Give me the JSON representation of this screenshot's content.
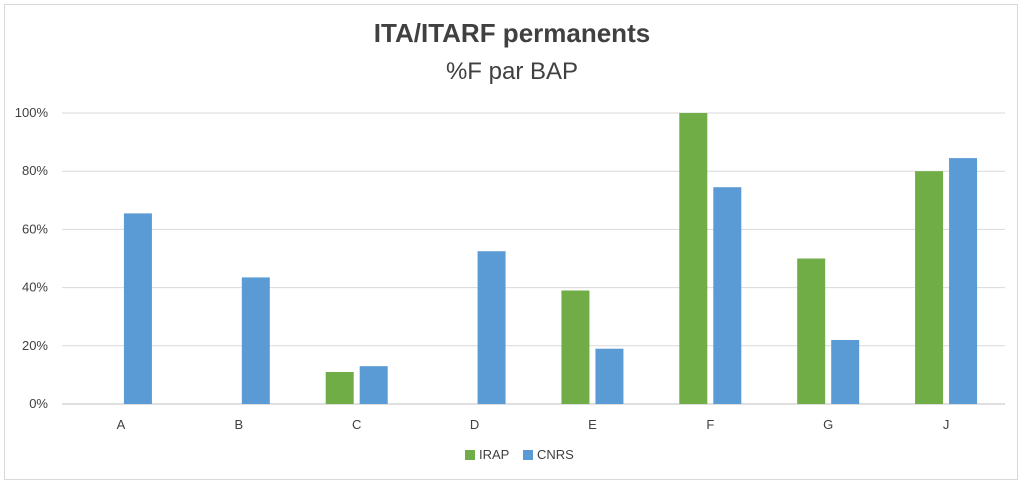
{
  "chart_data": {
    "type": "bar",
    "title": "ITA/ITARF permanents",
    "subtitle": "%F par BAP",
    "categories": [
      "A",
      "B",
      "C",
      "D",
      "E",
      "F",
      "G",
      "J"
    ],
    "series": [
      {
        "name": "IRAP",
        "color": "#70ad47",
        "values": [
          null,
          null,
          11,
          null,
          39,
          100,
          50,
          80
        ]
      },
      {
        "name": "CNRS",
        "color": "#5b9bd5",
        "values": [
          65.5,
          43.5,
          13,
          52.5,
          19,
          74.5,
          22,
          84.5
        ]
      }
    ],
    "ylim": [
      0,
      100
    ],
    "yticks": [
      0,
      20,
      40,
      60,
      80,
      100
    ],
    "ytick_labels": [
      "0%",
      "20%",
      "40%",
      "60%",
      "80%",
      "100%"
    ],
    "grid": true,
    "legend": "bottom",
    "gridline_color": "#d9d9d9"
  }
}
